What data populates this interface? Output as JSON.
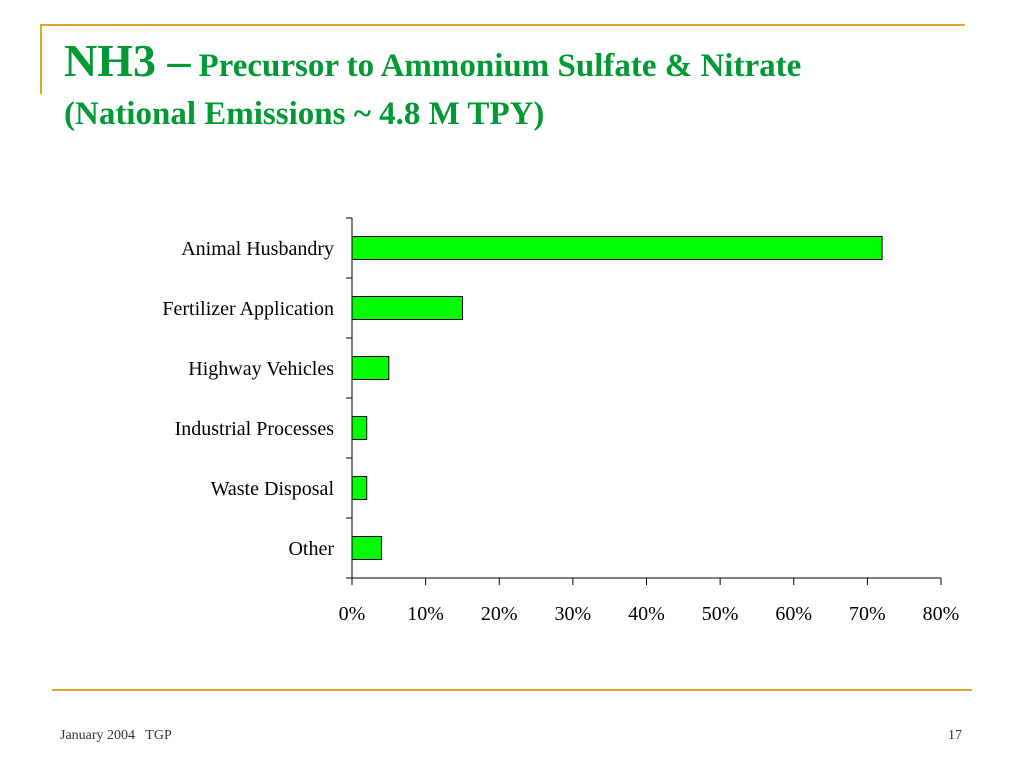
{
  "slide": {
    "title_main": "NH3 –",
    "title_rest": "Precursor to Ammonium Sulfate & Nitrate",
    "subtitle": "(National Emissions ~ 4.8 M TPY)",
    "footer_left": "January 2004   TGP",
    "page_number": "17"
  },
  "colors": {
    "bar_fill": "#00ff00",
    "bar_stroke": "#000000",
    "title": "#009933",
    "accent_rule": "#dca629"
  },
  "chart_data": {
    "type": "bar",
    "orientation": "horizontal",
    "categories": [
      "Animal Husbandry",
      "Fertilizer Application",
      "Highway Vehicles",
      "Industrial Processes",
      "Waste Disposal",
      "Other"
    ],
    "values": [
      72,
      15,
      5,
      2,
      2,
      4
    ],
    "xlim": [
      0,
      80
    ],
    "xticks": [
      "0%",
      "10%",
      "20%",
      "30%",
      "40%",
      "50%",
      "60%",
      "70%",
      "80%"
    ],
    "xlabel": "",
    "ylabel": "",
    "grid": false,
    "legend": "none"
  }
}
